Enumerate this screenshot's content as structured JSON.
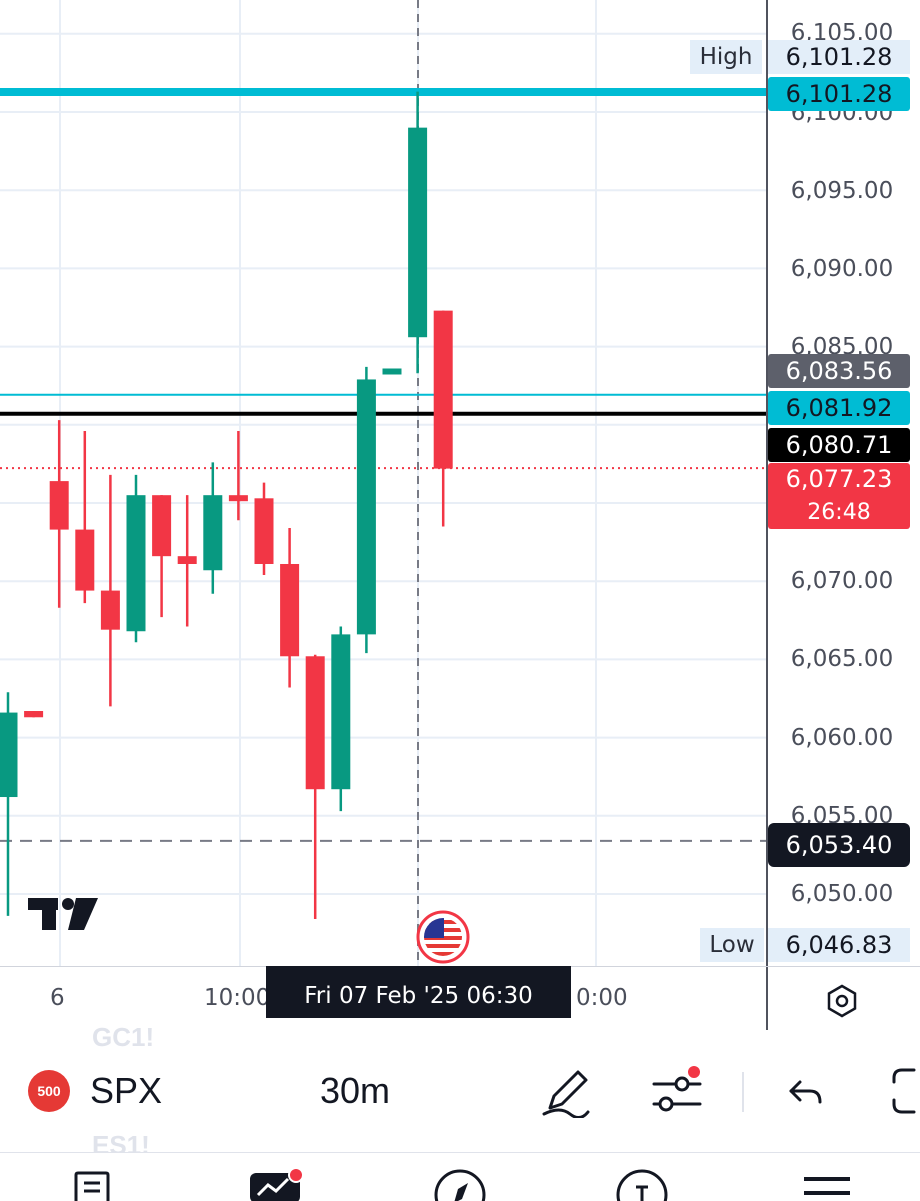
{
  "chart": {
    "symbol": "SPX",
    "interval": "30m",
    "price_axis_ticks": [
      "6,105.00",
      "6,100.00",
      "6,095.00",
      "6,090.00",
      "6,085.00",
      "6,070.00",
      "6,065.00",
      "6,060.00",
      "6,055.00",
      "6,050.00"
    ],
    "labels": {
      "high_tag": "High",
      "high_value": "6,101.28",
      "level_top": "6,101.28",
      "grey_level": "6,083.56",
      "cyan_level": "6,081.92",
      "black_level": "6,080.71",
      "last_price": "6,077.23",
      "countdown": "26:48",
      "dashed_level": "6,053.40",
      "low_tag": "Low",
      "low_value": "6,046.83"
    },
    "time_axis": [
      "6",
      "10:00",
      "0:00"
    ],
    "crosshair_date": "Fri 07 Feb '25    06:30",
    "colors": {
      "up": "#089981",
      "down": "#f23645",
      "cyan": "#00bcd4",
      "grid": "#e8eef6"
    }
  },
  "chart_data": {
    "type": "candlestick",
    "candles": [
      {
        "o": 6056.2,
        "h": 6062.9,
        "l": 6048.6,
        "c": 6061.6
      },
      {
        "o": 6061.7,
        "h": 6061.7,
        "l": 6061.3,
        "c": 6061.3
      },
      {
        "o": 6076.4,
        "h": 6080.3,
        "l": 6068.3,
        "c": 6073.3
      },
      {
        "o": 6073.3,
        "h": 6079.6,
        "l": 6068.6,
        "c": 6069.4
      },
      {
        "o": 6069.4,
        "h": 6076.8,
        "l": 6062.0,
        "c": 6066.9
      },
      {
        "o": 6066.8,
        "h": 6076.8,
        "l": 6066.1,
        "c": 6075.5
      },
      {
        "o": 6075.5,
        "h": 6075.5,
        "l": 6067.7,
        "c": 6071.6
      },
      {
        "o": 6071.6,
        "h": 6075.5,
        "l": 6067.1,
        "c": 6071.1
      },
      {
        "o": 6070.7,
        "h": 6077.6,
        "l": 6069.2,
        "c": 6075.5
      },
      {
        "o": 6075.5,
        "h": 6079.6,
        "l": 6073.9,
        "c": 6075.3
      },
      {
        "o": 6075.3,
        "h": 6076.3,
        "l": 6070.4,
        "c": 6071.1
      },
      {
        "o": 6071.1,
        "h": 6073.4,
        "l": 6063.2,
        "c": 6065.2
      },
      {
        "o": 6065.2,
        "h": 6065.3,
        "l": 6048.4,
        "c": 6056.7
      },
      {
        "o": 6056.7,
        "h": 6067.1,
        "l": 6055.3,
        "c": 6066.6
      },
      {
        "o": 6066.6,
        "h": 6083.7,
        "l": 6065.4,
        "c": 6082.9
      },
      {
        "o": 6083.6,
        "h": 6083.6,
        "l": 6083.6,
        "c": 6083.6
      },
      {
        "o": 6085.6,
        "h": 6101.3,
        "l": 6083.3,
        "c": 6099.0
      },
      {
        "o": 6087.3,
        "h": 6087.3,
        "l": 6073.5,
        "c": 6077.2
      }
    ],
    "levels": [
      6101.28,
      6083.56,
      6081.92,
      6080.71,
      6077.23,
      6053.4
    ],
    "ylim": [
      6046.0,
      6106.0
    ]
  },
  "toolbar": {
    "ghost_top": "GC1!",
    "ghost_bottom": "ES1!",
    "badge": "500"
  }
}
